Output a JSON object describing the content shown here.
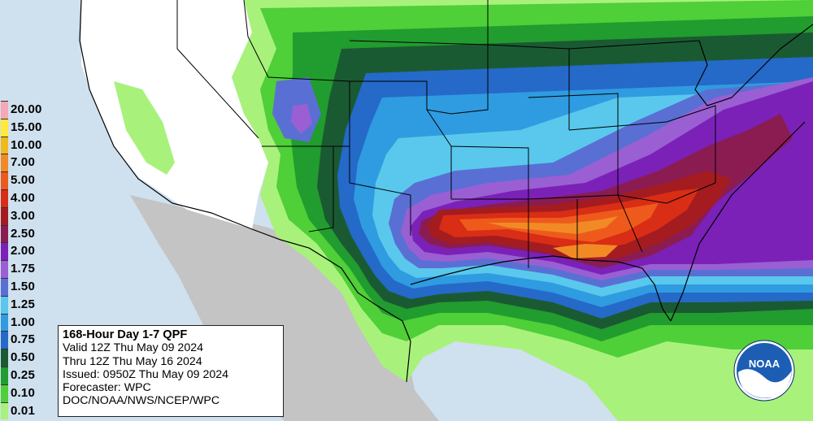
{
  "legend": {
    "items": [
      {
        "label": "20.00",
        "color": "#f7a8b6"
      },
      {
        "label": "15.00",
        "color": "#ffe93a"
      },
      {
        "label": "10.00",
        "color": "#f2b91c"
      },
      {
        "label": "7.00",
        "color": "#f18a25"
      },
      {
        "label": "5.00",
        "color": "#ee5a1c"
      },
      {
        "label": "4.00",
        "color": "#d92d16"
      },
      {
        "label": "3.00",
        "color": "#a41c20"
      },
      {
        "label": "2.50",
        "color": "#8b1c52"
      },
      {
        "label": "2.00",
        "color": "#7b21b8"
      },
      {
        "label": "1.75",
        "color": "#9a5fd3"
      },
      {
        "label": "1.50",
        "color": "#5a6fd4"
      },
      {
        "label": "1.25",
        "color": "#59c8ec"
      },
      {
        "label": "1.00",
        "color": "#2f9be0"
      },
      {
        "label": "0.75",
        "color": "#2569c9"
      },
      {
        "label": "0.50",
        "color": "#1a5a32"
      },
      {
        "label": "0.25",
        "color": "#219c2e"
      },
      {
        "label": "0.10",
        "color": "#4fcf38"
      },
      {
        "label": "0.01",
        "color": "#a8f27b"
      }
    ]
  },
  "info": {
    "title": "168-Hour Day 1-7 QPF",
    "valid": "Valid 12Z Thu May 09 2024",
    "thru": "Thru 12Z Thu May 16 2024",
    "issued": "Issued: 0950Z Thu May 09 2024",
    "forecaster": "Forecaster: WPC",
    "source": "DOC/NOAA/NWS/NCEP/WPC"
  },
  "logo": {
    "text": "NOAA"
  },
  "colors": {
    "ocean": "#cfe0ee",
    "land_nodata": "#ffffff",
    "mexico": "#c4c4c4"
  }
}
